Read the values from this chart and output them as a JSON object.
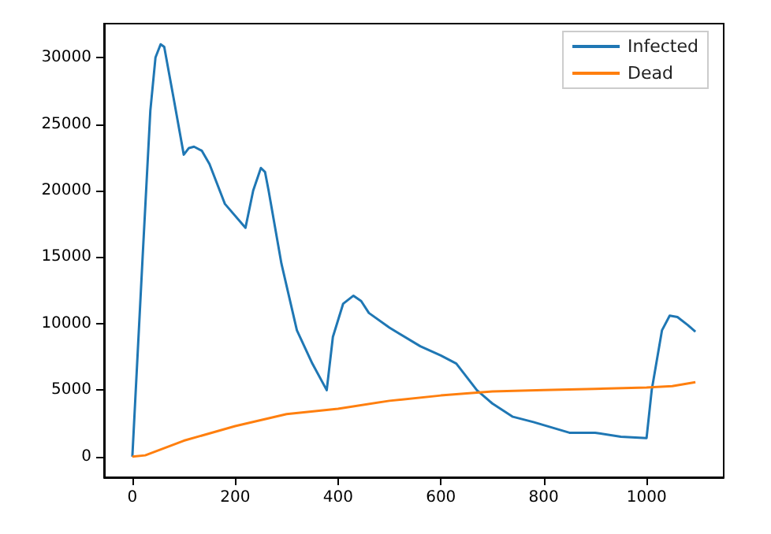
{
  "chart_data": {
    "type": "line",
    "legend": "top right",
    "grid": false,
    "xlim": [
      -55,
      1150
    ],
    "xticks": [
      0,
      200,
      400,
      600,
      800,
      1000
    ],
    "ylim": [
      -1550,
      32550
    ],
    "yticks": [
      0,
      5000,
      10000,
      15000,
      20000,
      25000,
      30000
    ],
    "series": [
      {
        "name": "Infected",
        "color": "#1f77b4",
        "x": [
          0,
          20,
          35,
          45,
          55,
          62,
          80,
          100,
          110,
          120,
          135,
          150,
          180,
          220,
          235,
          250,
          258,
          265,
          290,
          320,
          350,
          378,
          390,
          410,
          430,
          445,
          460,
          500,
          560,
          600,
          630,
          670,
          700,
          740,
          780,
          850,
          900,
          950,
          1000,
          1010,
          1030,
          1045,
          1060,
          1080,
          1095
        ],
        "values": [
          0,
          15000,
          26000,
          30000,
          31000,
          30800,
          27000,
          22700,
          23200,
          23300,
          23000,
          22000,
          19000,
          17200,
          20000,
          21700,
          21400,
          20000,
          14500,
          9500,
          7000,
          5000,
          9000,
          11500,
          12100,
          11700,
          10800,
          9700,
          8300,
          7600,
          7000,
          5000,
          4000,
          3000,
          2600,
          1800,
          1800,
          1500,
          1400,
          5000,
          9500,
          10600,
          10500,
          9900,
          9400
        ]
      },
      {
        "name": "Dead",
        "color": "#ff7f0e",
        "x": [
          0,
          25,
          100,
          200,
          300,
          400,
          500,
          600,
          700,
          800,
          900,
          1000,
          1050,
          1095
        ],
        "values": [
          0,
          100,
          1200,
          2300,
          3200,
          3600,
          4200,
          4600,
          4900,
          5000,
          5100,
          5200,
          5300,
          5600
        ]
      }
    ]
  }
}
